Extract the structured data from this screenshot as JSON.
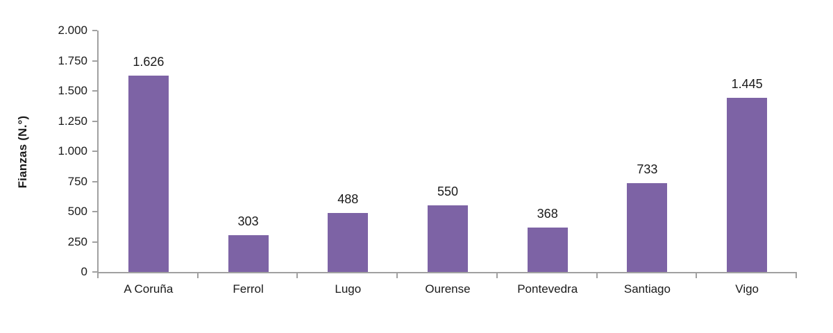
{
  "chart_data": {
    "type": "bar",
    "title": "",
    "categories": [
      "A Coruña",
      "Ferrol",
      "Lugo",
      "Ourense",
      "Pontevedra",
      "Santiago",
      "Vigo"
    ],
    "values": [
      1626,
      303,
      488,
      550,
      368,
      733,
      1445
    ],
    "data_labels": [
      "1.626",
      "303",
      "488",
      "550",
      "368",
      "733",
      "1.445"
    ],
    "xlabel": "",
    "ylabel": "Fianzas (N.°)",
    "ylim": [
      0,
      2000
    ],
    "ytick_step": 250,
    "ytick_labels": [
      "0",
      "250",
      "500",
      "750",
      "1.000",
      "1.250",
      "1.500",
      "1.750",
      "2.000"
    ],
    "grid": false,
    "legend": "none",
    "bar_color": "#7D63A5",
    "axis_color": "#A0A0A0",
    "text_color": "#1A1A1A"
  }
}
